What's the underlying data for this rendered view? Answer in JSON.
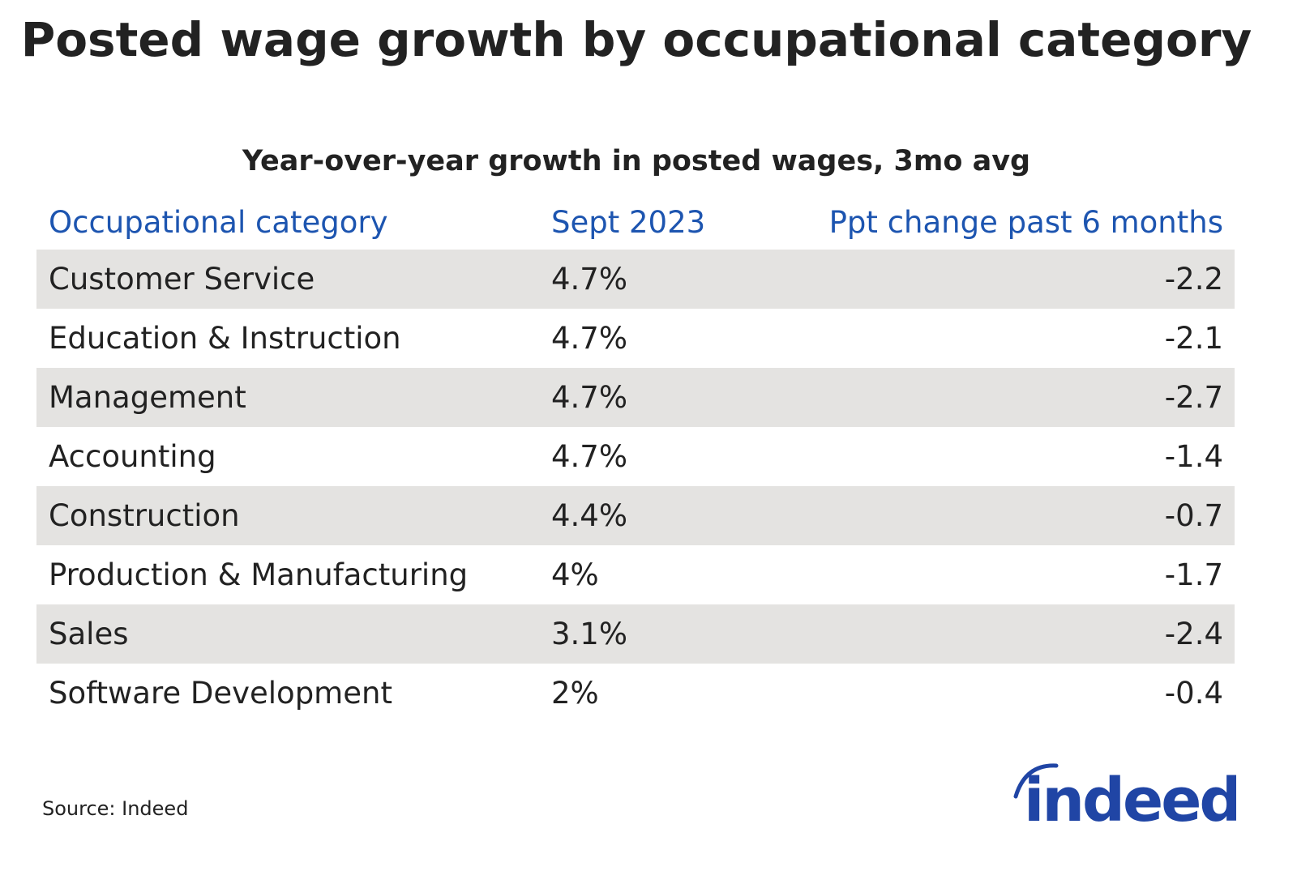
{
  "chart_data": {
    "type": "table",
    "title": "Posted wage growth by occupational category",
    "subtitle": "Year-over-year growth in posted wages, 3mo avg",
    "columns": [
      "Occupational category",
      "Sept 2023",
      "Ppt change past 6 months"
    ],
    "rows": [
      {
        "category": "Customer Service",
        "sept": "4.7%",
        "change": "-2.2"
      },
      {
        "category": "Education & Instruction",
        "sept": "4.7%",
        "change": "-2.1"
      },
      {
        "category": "Management",
        "sept": "4.7%",
        "change": "-2.7"
      },
      {
        "category": "Accounting",
        "sept": "4.7%",
        "change": "-1.4"
      },
      {
        "category": "Construction",
        "sept": "4.4%",
        "change": "-0.7"
      },
      {
        "category": "Production & Manufacturing",
        "sept": "4%",
        "change": "-1.7"
      },
      {
        "category": "Sales",
        "sept": "3.1%",
        "change": "-2.4"
      },
      {
        "category": "Software Development",
        "sept": "2%",
        "change": "-0.4"
      }
    ],
    "source": "Source: Indeed"
  },
  "colors": {
    "header": "#1d55b0",
    "row_shade": "#e4e3e1",
    "logo": "#2045a5"
  },
  "logo_text": "indeed"
}
